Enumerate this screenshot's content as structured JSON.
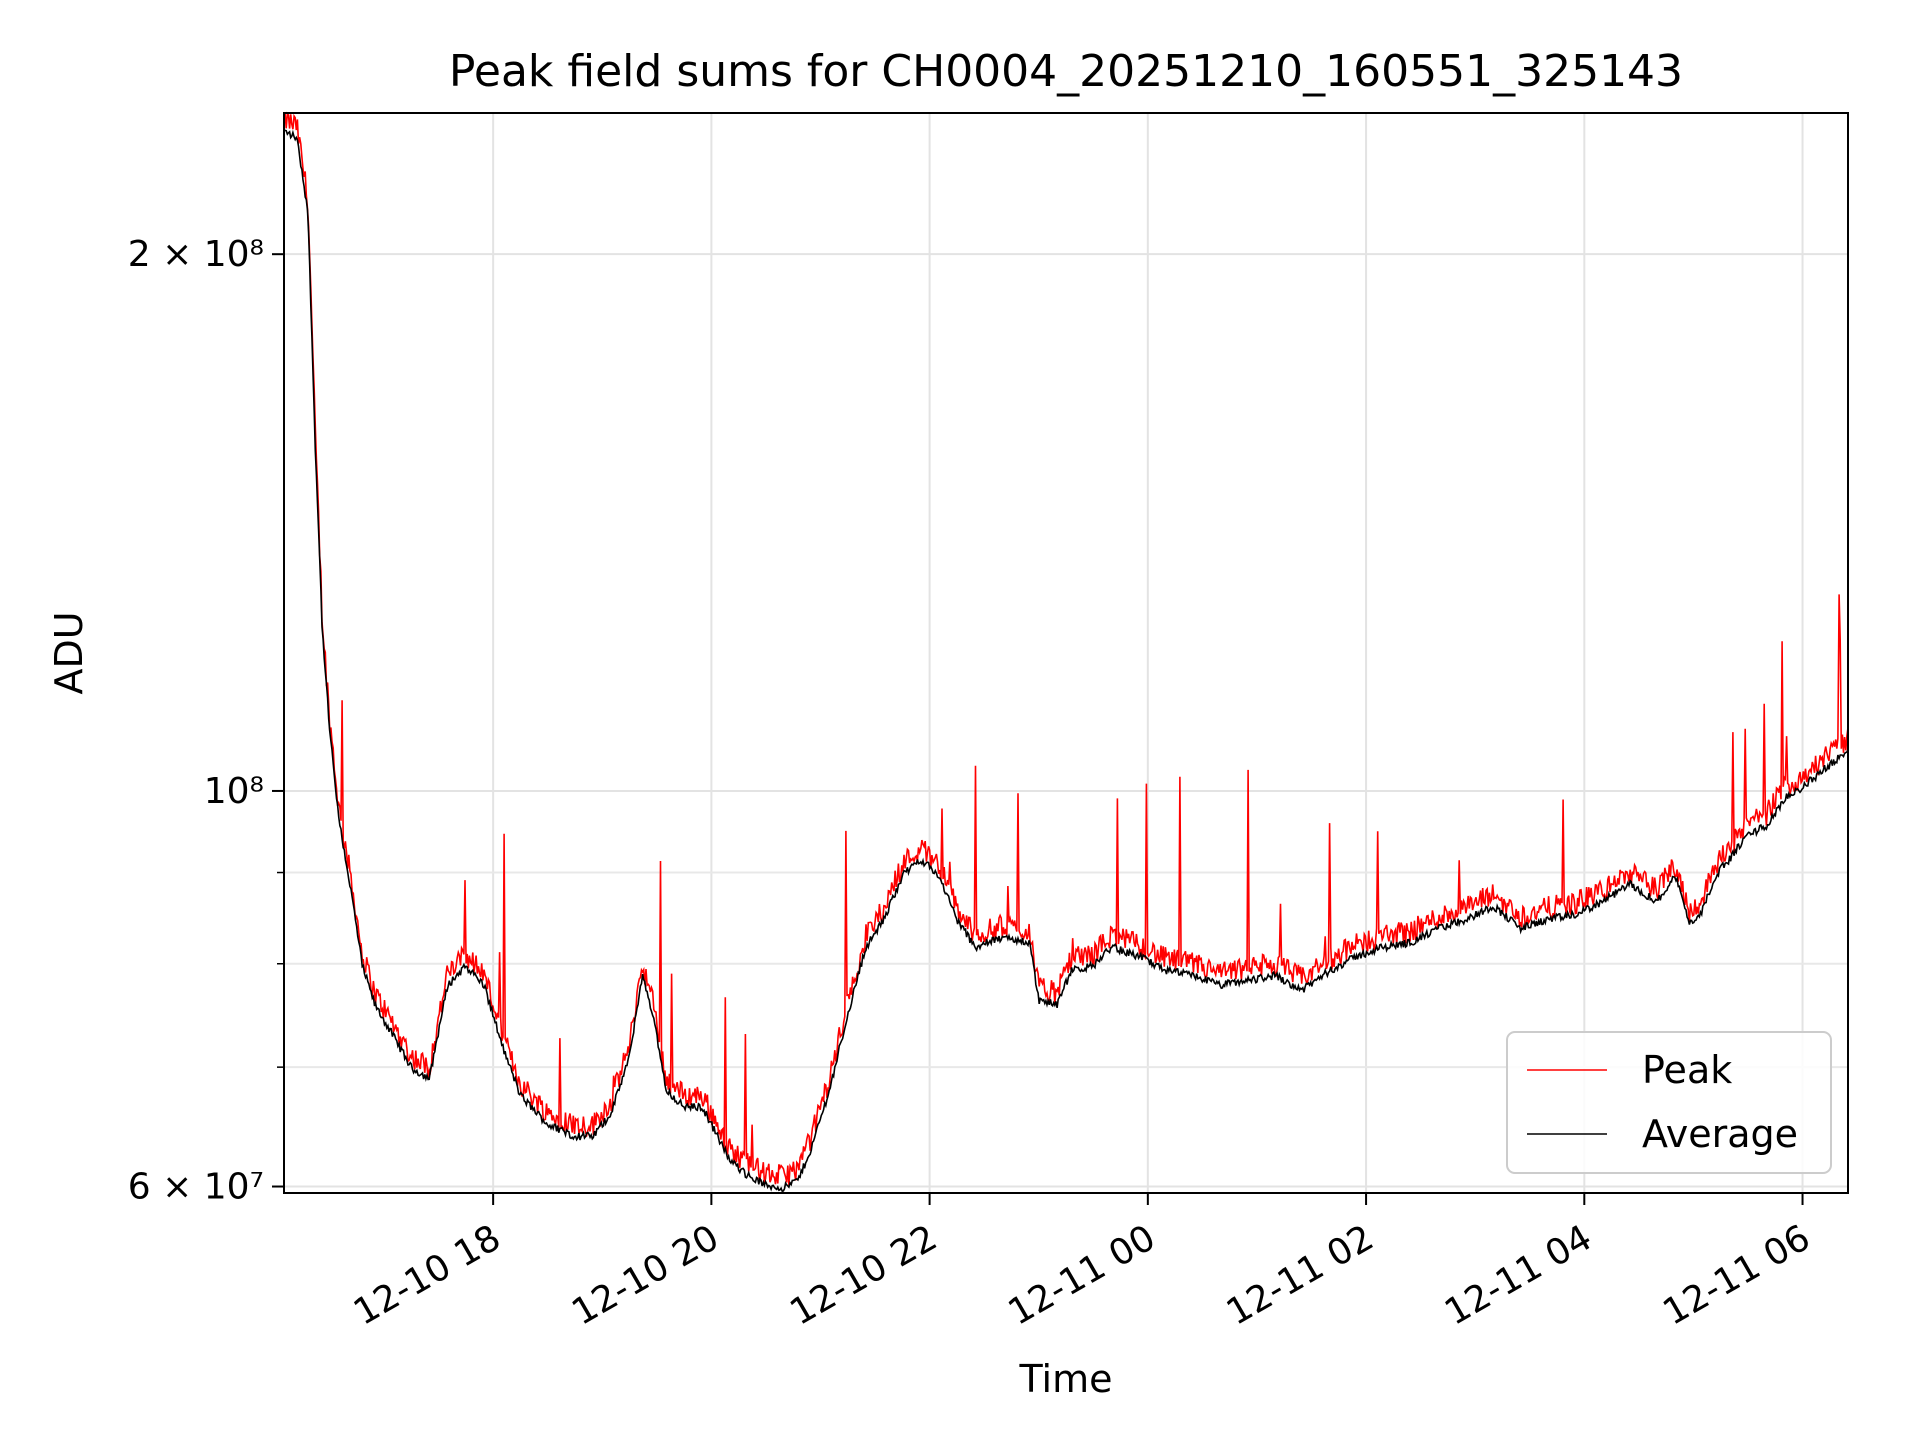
{
  "chart_data": {
    "type": "line",
    "title": "Peak field sums for CH0004_20251210_160551_325143",
    "xlabel": "Time",
    "ylabel": "ADU",
    "y_scale": "log",
    "ylim": [
      59500000,
      240000000
    ],
    "xlim": [
      "2025-12-10 16:05",
      "2025-12-11 06:25"
    ],
    "grid": true,
    "legend_position": "lower-right",
    "x_ticks": [
      {
        "t": "2025-12-10 18:00",
        "label": "12-10 18"
      },
      {
        "t": "2025-12-10 20:00",
        "label": "12-10 20"
      },
      {
        "t": "2025-12-10 22:00",
        "label": "12-10 22"
      },
      {
        "t": "2025-12-11 00:00",
        "label": "12-11 00"
      },
      {
        "t": "2025-12-11 02:00",
        "label": "12-11 02"
      },
      {
        "t": "2025-12-11 04:00",
        "label": "12-11 04"
      },
      {
        "t": "2025-12-11 06:00",
        "label": "12-11 06"
      }
    ],
    "y_ticks": [
      {
        "value": 60000000,
        "label": "6 × 10⁷"
      },
      {
        "value": 100000000,
        "label": "10⁸"
      },
      {
        "value": 200000000,
        "label": "2 × 10⁸"
      }
    ],
    "y_minor_gridlines": [
      70000000,
      80000000,
      90000000
    ],
    "series": [
      {
        "name": "Peak",
        "color": "#ff0000",
        "points": [
          [
            "2025-12-10 16:05",
            238000000
          ],
          [
            "2025-12-10 16:12",
            236000000
          ],
          [
            "2025-12-10 16:18",
            215000000
          ],
          [
            "2025-12-10 16:22",
            160000000
          ],
          [
            "2025-12-10 16:26",
            125000000
          ],
          [
            "2025-12-10 16:30",
            110000000
          ],
          [
            "2025-12-10 16:35",
            98000000
          ],
          [
            "2025-12-10 16:42",
            89000000
          ],
          [
            "2025-12-10 16:48",
            81000000
          ],
          [
            "2025-12-10 16:55",
            77000000
          ],
          [
            "2025-12-10 17:05",
            74000000
          ],
          [
            "2025-12-10 17:15",
            71000000
          ],
          [
            "2025-12-10 17:25",
            70000000
          ],
          [
            "2025-12-10 17:35",
            79000000
          ],
          [
            "2025-12-10 17:45",
            81000000
          ],
          [
            "2025-12-10 17:55",
            79000000
          ],
          [
            "2025-12-10 18:05",
            73000000
          ],
          [
            "2025-12-10 18:15",
            68500000
          ],
          [
            "2025-12-10 18:30",
            66000000
          ],
          [
            "2025-12-10 18:45",
            65000000
          ],
          [
            "2025-12-10 18:55",
            65000000
          ],
          [
            "2025-12-10 19:05",
            67000000
          ],
          [
            "2025-12-10 19:15",
            72000000
          ],
          [
            "2025-12-10 19:22",
            80000000
          ],
          [
            "2025-12-10 19:28",
            76000000
          ],
          [
            "2025-12-10 19:35",
            69000000
          ],
          [
            "2025-12-10 19:45",
            67500000
          ],
          [
            "2025-12-10 19:55",
            67500000
          ],
          [
            "2025-12-10 20:00",
            66000000
          ],
          [
            "2025-12-10 20:10",
            63000000
          ],
          [
            "2025-12-10 20:20",
            61800000
          ],
          [
            "2025-12-10 20:30",
            61000000
          ],
          [
            "2025-12-10 20:40",
            60800000
          ],
          [
            "2025-12-10 20:48",
            61500000
          ],
          [
            "2025-12-10 20:55",
            64000000
          ],
          [
            "2025-12-10 21:05",
            69000000
          ],
          [
            "2025-12-10 21:15",
            76000000
          ],
          [
            "2025-12-10 21:25",
            83000000
          ],
          [
            "2025-12-10 21:35",
            86000000
          ],
          [
            "2025-12-10 21:45",
            91000000
          ],
          [
            "2025-12-10 21:55",
            93000000
          ],
          [
            "2025-12-10 22:05",
            91000000
          ],
          [
            "2025-12-10 22:15",
            86000000
          ],
          [
            "2025-12-10 22:25",
            83000000
          ],
          [
            "2025-12-10 22:40",
            84000000
          ],
          [
            "2025-12-10 22:55",
            83500000
          ],
          [
            "2025-12-10 23:00",
            77500000
          ],
          [
            "2025-12-10 23:10",
            77000000
          ],
          [
            "2025-12-10 23:18",
            80500000
          ],
          [
            "2025-12-10 23:30",
            81000000
          ],
          [
            "2025-12-10 23:40",
            83000000
          ],
          [
            "2025-12-10 23:55",
            82000000
          ],
          [
            "2025-12-11 00:10",
            80500000
          ],
          [
            "2025-12-11 00:25",
            80000000
          ],
          [
            "2025-12-11 00:40",
            79000000
          ],
          [
            "2025-12-11 00:55",
            79500000
          ],
          [
            "2025-12-11 01:10",
            80000000
          ],
          [
            "2025-12-11 01:25",
            78500000
          ],
          [
            "2025-12-11 01:40",
            80500000
          ],
          [
            "2025-12-11 01:55",
            82000000
          ],
          [
            "2025-12-11 02:10",
            83000000
          ],
          [
            "2025-12-11 02:25",
            83500000
          ],
          [
            "2025-12-11 02:40",
            85000000
          ],
          [
            "2025-12-11 02:55",
            86000000
          ],
          [
            "2025-12-11 03:10",
            87500000
          ],
          [
            "2025-12-11 03:25",
            85000000
          ],
          [
            "2025-12-11 03:40",
            86000000
          ],
          [
            "2025-12-11 03:55",
            86500000
          ],
          [
            "2025-12-11 04:10",
            88000000
          ],
          [
            "2025-12-11 04:25",
            90000000
          ],
          [
            "2025-12-11 04:40",
            88000000
          ],
          [
            "2025-12-11 04:50",
            91000000
          ],
          [
            "2025-12-11 04:58",
            85500000
          ],
          [
            "2025-12-11 05:05",
            87000000
          ],
          [
            "2025-12-11 05:12",
            91000000
          ],
          [
            "2025-12-11 05:20",
            93000000
          ],
          [
            "2025-12-11 05:30",
            96000000
          ],
          [
            "2025-12-11 05:40",
            97000000
          ],
          [
            "2025-12-11 05:50",
            100500000
          ],
          [
            "2025-12-11 06:00",
            102000000
          ],
          [
            "2025-12-11 06:10",
            104000000
          ],
          [
            "2025-12-11 06:15",
            105000000
          ],
          [
            "2025-12-11 06:25",
            107000000
          ]
        ]
      },
      {
        "name": "Average",
        "color": "#000000",
        "points": []
      }
    ]
  }
}
